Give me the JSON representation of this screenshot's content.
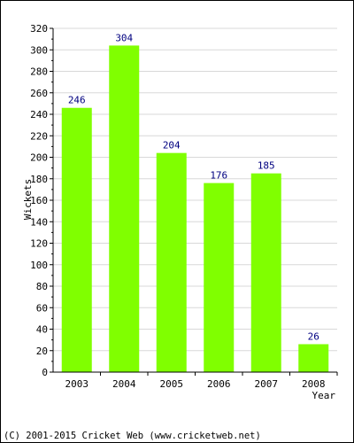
{
  "chart_data": {
    "type": "bar",
    "categories": [
      "2003",
      "2004",
      "2005",
      "2006",
      "2007",
      "2008"
    ],
    "values": [
      246,
      304,
      204,
      176,
      185,
      26
    ],
    "xlabel": "Year",
    "ylabel": "Wickets",
    "ylim": [
      0,
      320
    ],
    "yticks": [
      0,
      20,
      40,
      60,
      80,
      100,
      120,
      140,
      160,
      180,
      200,
      220,
      240,
      260,
      280,
      300,
      320
    ],
    "grid": true,
    "bar_color": "#80ff00",
    "label_color": "#000080",
    "grid_color": "#d8d8d8"
  },
  "footer": {
    "copyright": "(C) 2001-2015 Cricket Web (www.cricketweb.net)"
  }
}
